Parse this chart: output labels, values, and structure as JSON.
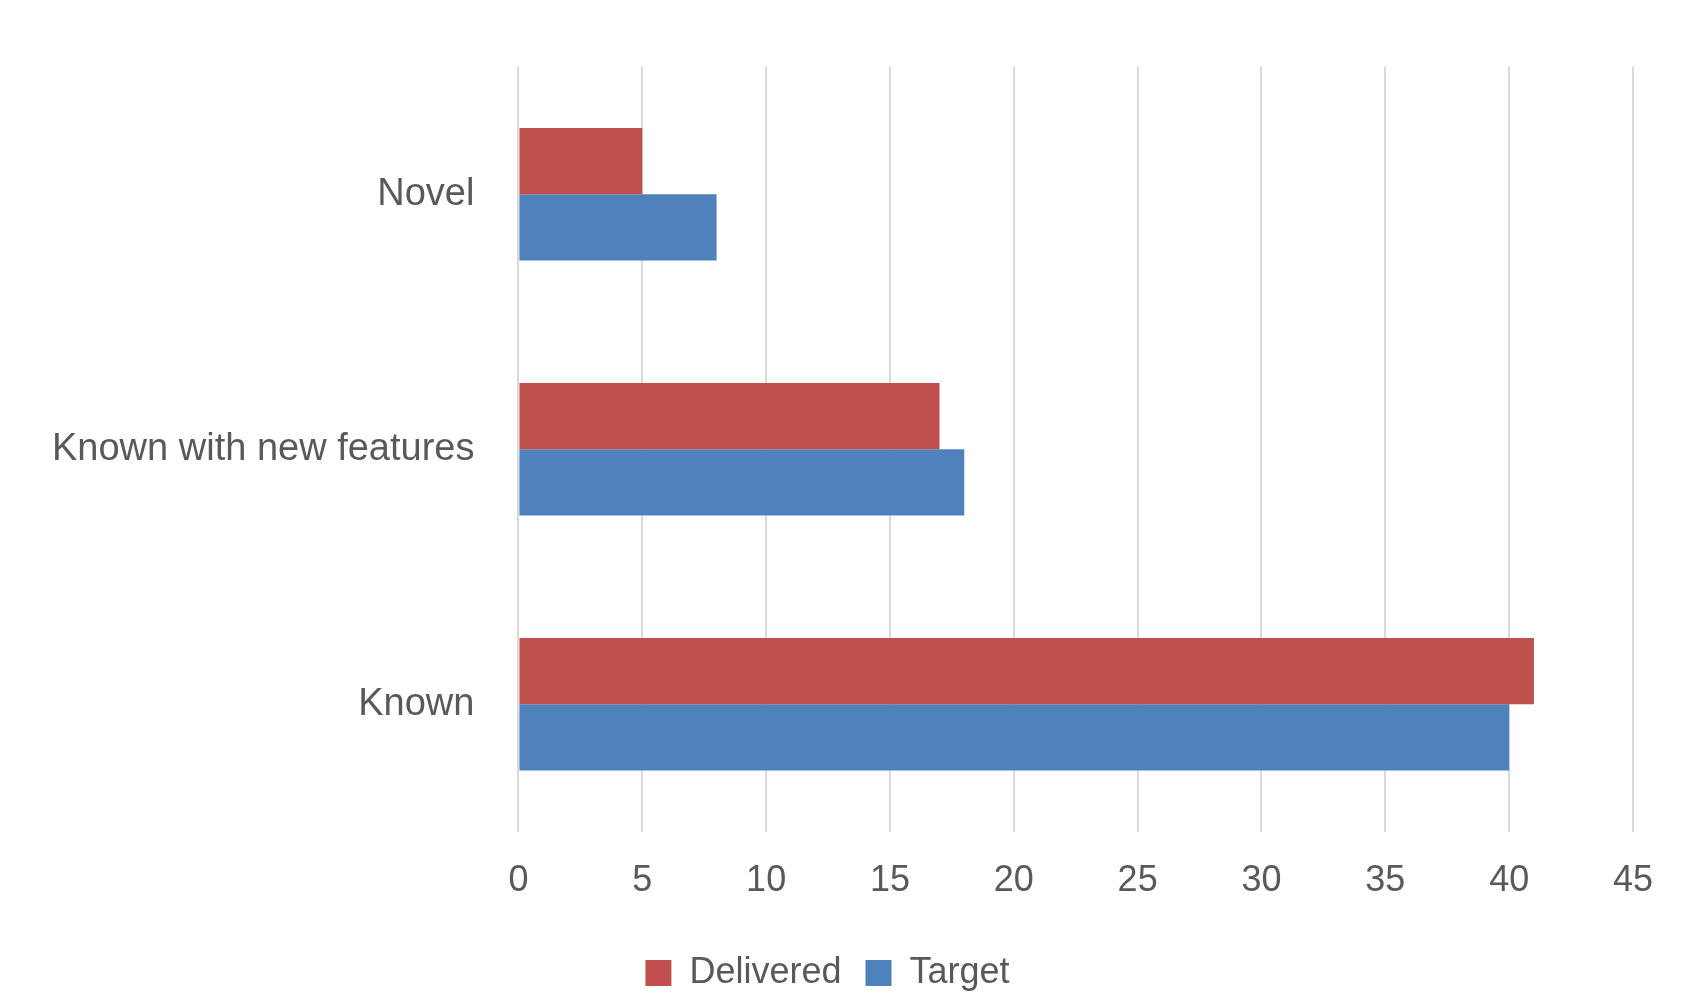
{
  "chart_data": {
    "type": "bar",
    "orientation": "horizontal",
    "categories": [
      "Novel",
      "Known with new features",
      "Known"
    ],
    "series": [
      {
        "name": "Delivered",
        "color": "#c0504d",
        "values": [
          5,
          17,
          41
        ]
      },
      {
        "name": "Target",
        "color": "#4f81bd",
        "values": [
          8,
          18,
          40
        ]
      }
    ],
    "xlim": [
      0,
      45
    ],
    "xticks": [
      0,
      5,
      10,
      15,
      20,
      25,
      30,
      35,
      40,
      45
    ],
    "grid": "x",
    "legend": "bottom"
  }
}
